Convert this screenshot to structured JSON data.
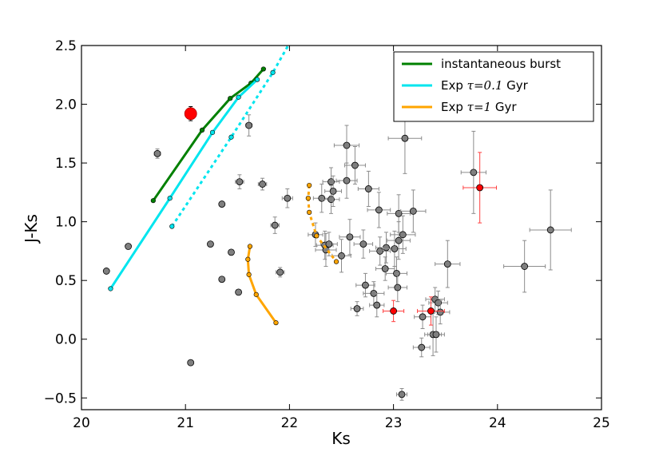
{
  "chart_data": {
    "type": "scatter",
    "title": "",
    "xlabel": "Ks",
    "ylabel": "J-Ks",
    "xlim": [
      20,
      25
    ],
    "ylim": [
      -0.6,
      2.5
    ],
    "grid": false,
    "legend_position": "top-right",
    "x_ticks": [
      {
        "value": 20,
        "label": "20"
      },
      {
        "value": 21,
        "label": "21"
      },
      {
        "value": 22,
        "label": "22"
      },
      {
        "value": 23,
        "label": "23"
      },
      {
        "value": 24,
        "label": "24"
      },
      {
        "value": 25,
        "label": "25"
      }
    ],
    "y_ticks": [
      {
        "value": -0.5,
        "label": "−0.5"
      },
      {
        "value": 0.0,
        "label": "0.0"
      },
      {
        "value": 0.5,
        "label": "0.5"
      },
      {
        "value": 1.0,
        "label": "1.0"
      },
      {
        "value": 1.5,
        "label": "1.5"
      },
      {
        "value": 2.0,
        "label": "2.0"
      },
      {
        "value": 2.5,
        "label": "2.5"
      }
    ],
    "model_tracks": [
      {
        "name": "instantaneous burst",
        "math": "",
        "suffix": "",
        "color": "#008000",
        "style": "solid",
        "x": [
          20.69,
          21.16,
          21.43,
          21.63,
          21.75
        ],
        "y": [
          1.18,
          1.78,
          2.05,
          2.18,
          2.3
        ]
      },
      {
        "name": "Exp",
        "math": "τ=0.1",
        "suffix": "Gyr",
        "color": "#00e5ee",
        "style": "solid",
        "x": [
          20.28,
          20.85,
          21.26,
          21.51,
          21.69
        ],
        "y": [
          0.43,
          1.2,
          1.76,
          2.06,
          2.21
        ]
      },
      {
        "name": "",
        "math": "",
        "suffix": "",
        "color": "#00e5ee",
        "style": "dotted",
        "legend": false,
        "x": [
          20.87,
          21.44,
          21.84,
          22.0
        ],
        "y": [
          0.96,
          1.72,
          2.27,
          2.52
        ]
      },
      {
        "name": "Exp",
        "math": "τ=1",
        "suffix": "Gyr",
        "color": "#ffa500",
        "style": "solid",
        "x": [
          21.62,
          21.6,
          21.61,
          21.68,
          21.87
        ],
        "y": [
          0.79,
          0.68,
          0.55,
          0.38,
          0.14
        ]
      },
      {
        "name": "",
        "math": "",
        "suffix": "",
        "color": "#ffa500",
        "style": "dotted",
        "legend": false,
        "x": [
          22.19,
          22.18,
          22.19,
          22.26,
          22.45
        ],
        "y": [
          1.31,
          1.2,
          1.08,
          0.88,
          0.66
        ]
      }
    ],
    "grey_points": [
      {
        "x": 20.24,
        "y": 0.58
      },
      {
        "x": 20.45,
        "y": 0.79
      },
      {
        "x": 20.73,
        "y": 1.58,
        "xerr": 0.03,
        "yerr": 0.04
      },
      {
        "x": 21.05,
        "y": -0.2
      },
      {
        "x": 21.24,
        "y": 0.81
      },
      {
        "x": 21.35,
        "y": 0.51
      },
      {
        "x": 21.35,
        "y": 1.15
      },
      {
        "x": 21.44,
        "y": 0.74
      },
      {
        "x": 21.51,
        "y": 0.4
      },
      {
        "x": 21.52,
        "y": 1.34,
        "xerr": 0.04,
        "yerr": 0.06
      },
      {
        "x": 21.61,
        "y": 1.82,
        "xerr": 0.03,
        "yerr": 0.09
      },
      {
        "x": 21.74,
        "y": 1.32,
        "xerr": 0.04,
        "yerr": 0.05
      },
      {
        "x": 21.86,
        "y": 0.97,
        "xerr": 0.04,
        "yerr": 0.07
      },
      {
        "x": 21.91,
        "y": 0.57,
        "xerr": 0.04,
        "yerr": 0.04
      },
      {
        "x": 21.98,
        "y": 1.2,
        "xerr": 0.05,
        "yerr": 0.08
      },
      {
        "x": 22.25,
        "y": 0.89,
        "xerr": 0.07,
        "yerr": 0.1
      },
      {
        "x": 22.31,
        "y": 1.2,
        "xerr": 0.08,
        "yerr": 0.12
      },
      {
        "x": 22.34,
        "y": 0.8,
        "xerr": 0.08,
        "yerr": 0.12
      },
      {
        "x": 22.35,
        "y": 0.76,
        "xerr": 0.1,
        "yerr": 0.14
      },
      {
        "x": 22.38,
        "y": 0.81,
        "xerr": 0.08,
        "yerr": 0.1
      },
      {
        "x": 22.4,
        "y": 1.19,
        "xerr": 0.08,
        "yerr": 0.12
      },
      {
        "x": 22.4,
        "y": 1.34,
        "xerr": 0.08,
        "yerr": 0.12
      },
      {
        "x": 22.42,
        "y": 1.26,
        "xerr": 0.08,
        "yerr": 0.13
      },
      {
        "x": 22.5,
        "y": 0.71,
        "xerr": 0.09,
        "yerr": 0.14
      },
      {
        "x": 22.55,
        "y": 1.35,
        "xerr": 0.1,
        "yerr": 0.15
      },
      {
        "x": 22.55,
        "y": 1.65,
        "xerr": 0.12,
        "yerr": 0.17
      },
      {
        "x": 22.58,
        "y": 0.87,
        "xerr": 0.1,
        "yerr": 0.15
      },
      {
        "x": 22.63,
        "y": 1.48,
        "xerr": 0.1,
        "yerr": 0.16
      },
      {
        "x": 22.65,
        "y": 0.26,
        "xerr": 0.06,
        "yerr": 0.06
      },
      {
        "x": 22.71,
        "y": 0.81,
        "xerr": 0.09,
        "yerr": 0.12
      },
      {
        "x": 22.73,
        "y": 0.46,
        "xerr": 0.09,
        "yerr": 0.1
      },
      {
        "x": 22.76,
        "y": 1.28,
        "xerr": 0.1,
        "yerr": 0.15
      },
      {
        "x": 22.81,
        "y": 0.39,
        "xerr": 0.1,
        "yerr": 0.1
      },
      {
        "x": 22.84,
        "y": 0.29,
        "xerr": 0.07,
        "yerr": 0.1
      },
      {
        "x": 22.86,
        "y": 1.1,
        "xerr": 0.11,
        "yerr": 0.15
      },
      {
        "x": 22.87,
        "y": 0.75,
        "xerr": 0.1,
        "yerr": 0.12
      },
      {
        "x": 22.92,
        "y": 0.6,
        "xerr": 0.09,
        "yerr": 0.1
      },
      {
        "x": 22.93,
        "y": 0.78,
        "xerr": 0.1,
        "yerr": 0.13
      },
      {
        "x": 23.01,
        "y": 0.77,
        "xerr": 0.11,
        "yerr": 0.15
      },
      {
        "x": 23.03,
        "y": 0.56,
        "xerr": 0.1,
        "yerr": 0.14
      },
      {
        "x": 23.04,
        "y": 0.44,
        "xerr": 0.09,
        "yerr": 0.12
      },
      {
        "x": 23.05,
        "y": 0.84,
        "xerr": 0.11,
        "yerr": 0.16
      },
      {
        "x": 23.05,
        "y": 1.07,
        "xerr": 0.11,
        "yerr": 0.16
      },
      {
        "x": 23.08,
        "y": -0.47,
        "xerr": 0.05,
        "yerr": 0.05
      },
      {
        "x": 23.09,
        "y": 0.89,
        "xerr": 0.12,
        "yerr": 0.16
      },
      {
        "x": 23.11,
        "y": 1.71,
        "xerr": 0.16,
        "yerr": 0.3
      },
      {
        "x": 23.19,
        "y": 1.09,
        "xerr": 0.12,
        "yerr": 0.18
      },
      {
        "x": 23.27,
        "y": -0.07,
        "xerr": 0.08,
        "yerr": 0.08
      },
      {
        "x": 23.28,
        "y": 0.19,
        "xerr": 0.08,
        "yerr": 0.1
      },
      {
        "x": 23.38,
        "y": 0.04,
        "xerr": 0.08,
        "yerr": 0.18
      },
      {
        "x": 23.4,
        "y": 0.34,
        "xerr": 0.09,
        "yerr": 0.1
      },
      {
        "x": 23.41,
        "y": 0.04,
        "xerr": 0.08,
        "yerr": 0.15
      },
      {
        "x": 23.43,
        "y": 0.31,
        "xerr": 0.09,
        "yerr": 0.1
      },
      {
        "x": 23.45,
        "y": 0.23,
        "xerr": 0.09,
        "yerr": 0.1
      },
      {
        "x": 23.52,
        "y": 0.64,
        "xerr": 0.12,
        "yerr": 0.2
      },
      {
        "x": 23.77,
        "y": 1.42,
        "xerr": 0.12,
        "yerr": 0.35
      },
      {
        "x": 24.26,
        "y": 0.62,
        "xerr": 0.2,
        "yerr": 0.22
      },
      {
        "x": 24.51,
        "y": 0.93,
        "xerr": 0.2,
        "yerr": 0.34
      }
    ],
    "red_points": [
      {
        "x": 23.0,
        "y": 0.24,
        "xerr": 0.1,
        "yerr": 0.09
      },
      {
        "x": 23.36,
        "y": 0.24,
        "xerr": 0.13,
        "yerr": 0.12
      },
      {
        "x": 23.83,
        "y": 1.29,
        "xerr": 0.16,
        "yerr": 0.3
      }
    ],
    "highlight_point": {
      "x": 21.05,
      "y": 1.92,
      "yerr": 0.06,
      "color": "#ff0000"
    }
  }
}
